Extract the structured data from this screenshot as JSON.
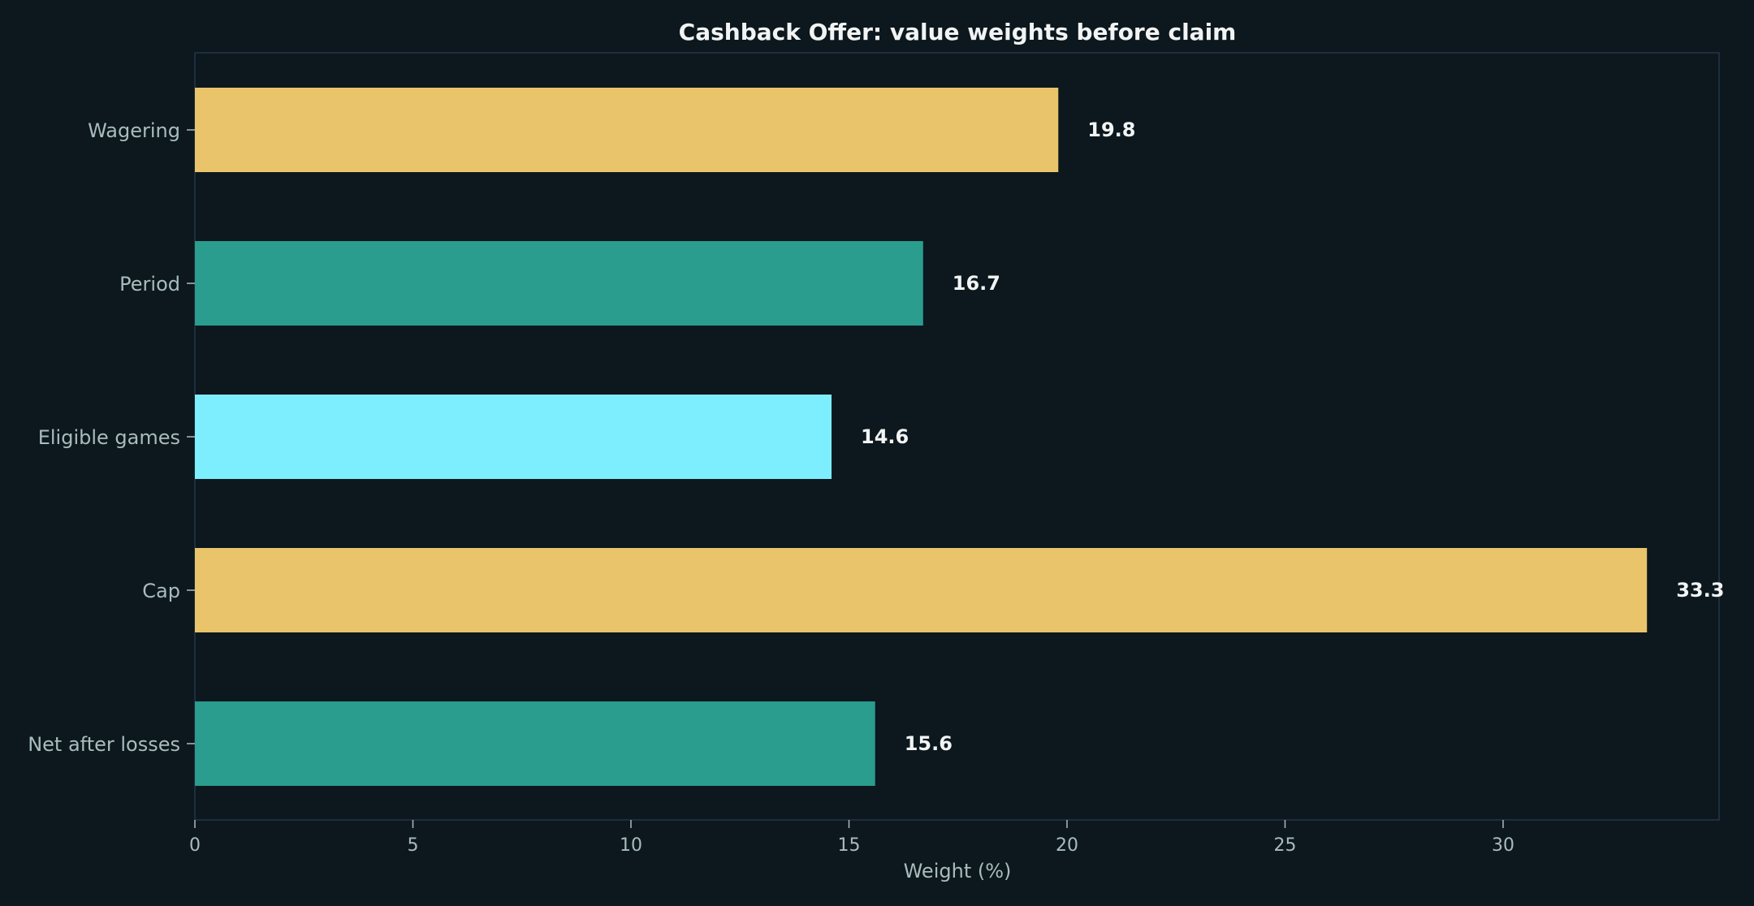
{
  "chart_data": {
    "type": "bar",
    "orientation": "horizontal",
    "title": "Cashback Offer: value weights before claim",
    "xlabel": "Weight (%)",
    "ylabel": "",
    "categories": [
      "Wagering",
      "Period",
      "Eligible games",
      "Cap",
      "Net after losses"
    ],
    "values": [
      19.8,
      16.7,
      14.6,
      33.3,
      15.6
    ],
    "value_labels": [
      "19.8",
      "16.7",
      "14.6",
      "33.3",
      "15.6"
    ],
    "bar_colors": [
      "#e9c46a",
      "#2a9d8f",
      "#7ceefe",
      "#e9c46a",
      "#2a9d8f"
    ],
    "xlim": [
      0,
      35
    ],
    "xticks": [
      0,
      5,
      10,
      15,
      20,
      25,
      30
    ],
    "xtick_labels": [
      "0",
      "5",
      "10",
      "15",
      "20",
      "25",
      "30"
    ],
    "grid": false,
    "legend": "none"
  }
}
